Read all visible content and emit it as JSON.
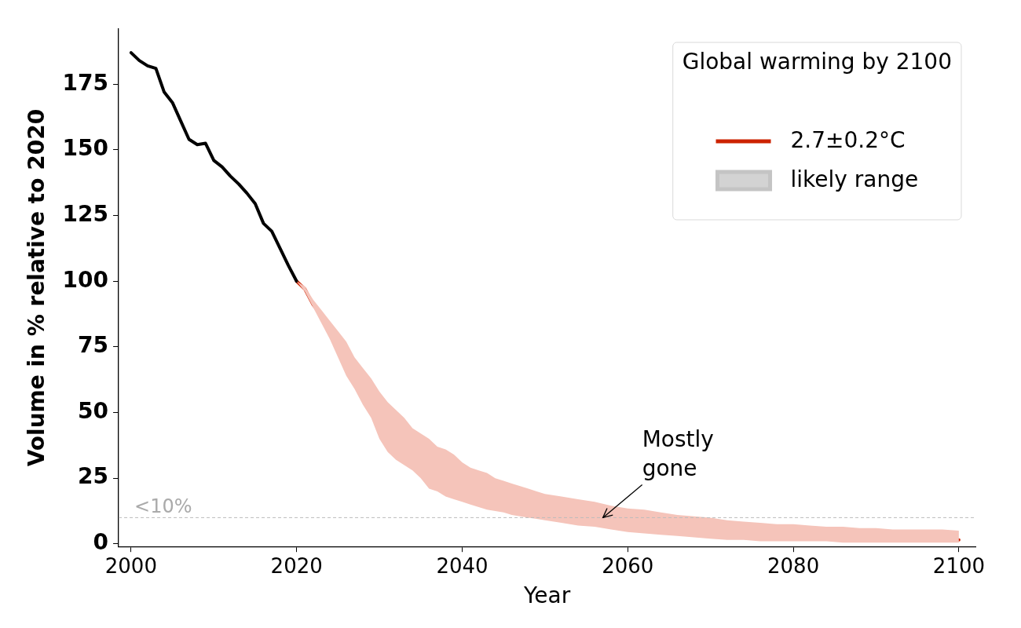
{
  "chart_data": {
    "type": "line",
    "x_label": "Year",
    "y_label": "Volume in % relative to 2020",
    "xlim": [
      1998.5,
      2102
    ],
    "xticks": [
      2000,
      2020,
      2040,
      2060,
      2080,
      2100
    ],
    "ylim": [
      -1,
      196
    ],
    "yticks": [
      0,
      25,
      50,
      75,
      100,
      125,
      150,
      175
    ],
    "grid": false,
    "legend": "upper right",
    "legend_title": "Global warming by 2100",
    "series": [
      {
        "color": "#000000",
        "x": [
          2000,
          2001,
          2002,
          2003,
          2004,
          2005,
          2006,
          2007,
          2008,
          2009,
          2010,
          2011,
          2012,
          2013,
          2014,
          2015,
          2016,
          2017,
          2018,
          2019,
          2020
        ],
        "values": [
          187,
          184,
          182,
          181,
          172,
          168,
          161,
          154,
          152,
          152.5,
          146,
          143.5,
          140,
          137,
          133.5,
          129.5,
          122,
          119,
          112.5,
          106,
          100
        ]
      },
      {
        "name": "2.7±0.2°C",
        "color": "#cc2200",
        "x": [
          2020,
          2021,
          2022,
          2023,
          2024,
          2025,
          2026,
          2027,
          2028,
          2029,
          2030,
          2031,
          2032,
          2033,
          2034,
          2035,
          2036,
          2037,
          2038,
          2039,
          2040,
          2041,
          2042,
          2043,
          2044,
          2045,
          2046,
          2047,
          2048,
          2049,
          2050,
          2052,
          2054,
          2056,
          2058,
          2060,
          2062,
          2064,
          2066,
          2068,
          2070,
          2072,
          2074,
          2076,
          2078,
          2080,
          2082,
          2084,
          2086,
          2088,
          2090,
          2092,
          2094,
          2096,
          2098,
          2100
        ],
        "values": [
          100,
          97,
          91,
          87,
          81,
          75,
          70,
          64,
          60,
          56,
          50,
          46,
          44,
          40,
          36.5,
          33,
          30,
          28.5,
          27.5,
          26,
          25,
          23.5,
          22,
          20.5,
          19.5,
          18.5,
          17.5,
          16.5,
          15.5,
          14.5,
          13.5,
          12.5,
          11.5,
          10.5,
          9,
          8.5,
          7.5,
          7,
          6,
          5.5,
          5,
          4.5,
          4,
          4,
          4,
          4,
          3.5,
          3,
          3,
          3,
          2.5,
          2.5,
          2,
          2,
          1.5,
          1.5
        ]
      },
      {
        "name": "likely range",
        "type": "band",
        "color": "#f5c4ba",
        "x": [
          2020,
          2021,
          2022,
          2023,
          2024,
          2025,
          2026,
          2027,
          2028,
          2029,
          2030,
          2031,
          2032,
          2033,
          2034,
          2035,
          2036,
          2037,
          2038,
          2039,
          2040,
          2041,
          2042,
          2043,
          2044,
          2045,
          2046,
          2047,
          2048,
          2049,
          2050,
          2052,
          2054,
          2056,
          2058,
          2060,
          2062,
          2064,
          2066,
          2068,
          2070,
          2072,
          2074,
          2076,
          2078,
          2080,
          2082,
          2084,
          2086,
          2088,
          2090,
          2092,
          2094,
          2096,
          2098,
          2100
        ],
        "lower": [
          100,
          96,
          90,
          84,
          78,
          71,
          64,
          59,
          53,
          48,
          40,
          35,
          32,
          30,
          28,
          25,
          21,
          20,
          18,
          17,
          16,
          15,
          14,
          13,
          12.5,
          12,
          11,
          10.5,
          10,
          9.5,
          9,
          8,
          7,
          6.5,
          5.5,
          4.5,
          4,
          3.5,
          3,
          2.5,
          2,
          1.5,
          1.5,
          1,
          1,
          1,
          1,
          1,
          0.5,
          0.5,
          0.5,
          0.5,
          0.5,
          0.5,
          0.5,
          0.5
        ],
        "upper": [
          100,
          98,
          93,
          89,
          85,
          81,
          77,
          71,
          67,
          63,
          58,
          54,
          51,
          48,
          44,
          42,
          40,
          37,
          36,
          34,
          31,
          29,
          28,
          27,
          25,
          24,
          23,
          22,
          21,
          20,
          19,
          18,
          17,
          16,
          14.5,
          13.5,
          13,
          12,
          11,
          10.5,
          10,
          9,
          8.5,
          8,
          7.5,
          7.5,
          7,
          6.5,
          6.5,
          6,
          6,
          5.5,
          5.5,
          5.5,
          5.5,
          5
        ]
      }
    ],
    "threshold": {
      "value": 10,
      "label": "<10%"
    },
    "annotations": [
      {
        "text": "Mostly gone",
        "x": 2057,
        "y": 10
      }
    ]
  }
}
